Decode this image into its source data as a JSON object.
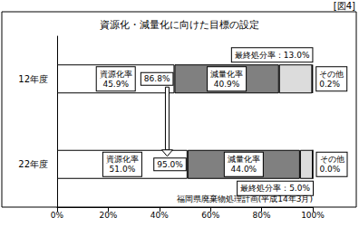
{
  "chart_data": {
    "type": "bar",
    "title": "資源化・減量化に向けた目標の設定",
    "figure_label": "[図4]",
    "source": "福岡県廃棄物処理計画(平成14年3月)",
    "orientation": "horizontal",
    "stacked": true,
    "data_labels": true,
    "grid": false,
    "categories": [
      "12年度",
      "22年度"
    ],
    "series": [
      {
        "name": "資源化率",
        "color": "#ffffff",
        "values": [
          45.9,
          51.0
        ],
        "value_labels": [
          "45.9%",
          "51.0%"
        ]
      },
      {
        "name": "減量化率",
        "color": "#808080",
        "values": [
          40.9,
          44.0
        ],
        "value_labels": [
          "40.9%",
          "44.0%"
        ]
      },
      {
        "name": "最終処分率",
        "color": "#dcdcdc",
        "values": [
          13.0,
          5.0
        ],
        "value_labels": [
          "最終処分率：13.0%",
          "最終処分率：5.0%"
        ]
      },
      {
        "name": "その他",
        "color": "#ffffff",
        "values": [
          0.2,
          0.0
        ],
        "value_labels": [
          "0.2%",
          "0.0%"
        ]
      }
    ],
    "annotations": [
      "86.8%",
      "95.0%"
    ],
    "xlim": [
      0,
      100
    ],
    "xticks": [
      {
        "value": 0,
        "label": "0%"
      },
      {
        "value": 20,
        "label": "20%"
      },
      {
        "value": 40,
        "label": "40%"
      },
      {
        "value": 60,
        "label": "60%"
      },
      {
        "value": 80,
        "label": "80%"
      },
      {
        "value": 100,
        "label": "100%"
      }
    ]
  }
}
